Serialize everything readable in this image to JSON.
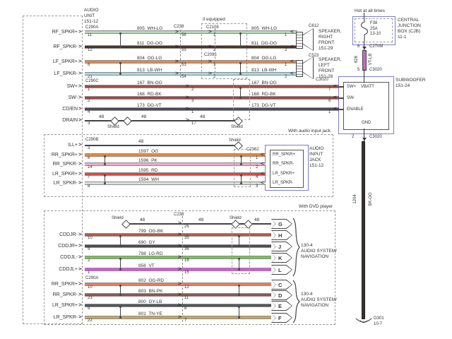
{
  "shield_label": "Shield",
  "audio_unit": {
    "title": "AUDIO\nUNIT\n151-12"
  },
  "front": {
    "left_connector": "C290A",
    "mid_connector": "C238",
    "if_equipped": "if equipped",
    "rows": [
      {
        "signal": "RF_SPKR+",
        "pin": "11",
        "mid_pin": "56",
        "ifeq": "C2108",
        "ifeq_pin": "1",
        "circuit": "805",
        "code": "WH-LG",
        "hex": "#b5d9b5",
        "dest": "C612",
        "dest_pin": "1"
      },
      {
        "signal": "RF_SPKR-",
        "pin": "12",
        "mid_pin": "55",
        "ifeq": "",
        "ifeq_pin": "2",
        "circuit": "811",
        "code": "DG-OG",
        "hex": "#4a332a",
        "dest": "",
        "dest_pin": "2"
      },
      {
        "signal": "LF_SPKR+",
        "pin": "8",
        "mid_pin": "53",
        "ifeq": "C2095",
        "ifeq_pin": "1",
        "circuit": "804",
        "code": "OG-LG",
        "hex": "#dc8a52",
        "dest": "C523",
        "dest_pin": "1"
      },
      {
        "signal": "LF_SPKR-",
        "pin": "21",
        "mid_pin": "54",
        "ifeq": "",
        "ifeq_pin": "2",
        "circuit": "813",
        "code": "LB-WH",
        "hex": "#a6d9e4",
        "dest": "",
        "dest_pin": "2"
      }
    ],
    "speakers": [
      "SPEAKER,\nRIGHT\nFRONT\n151-29",
      "SPEAKER,\nLEFT\nFRONT\n151-28"
    ]
  },
  "sw": {
    "left_connector": "C290C",
    "dest_connector": "C3020",
    "rows": [
      {
        "signal": "SW+",
        "pin": "1",
        "mid_pin": "2",
        "circuit": "167",
        "code": "BN-OG",
        "hex": "#9e4f45",
        "dest_pin": "7"
      },
      {
        "signal": "SW-",
        "pin": "2",
        "mid_pin": "3",
        "circuit": "168",
        "code": "RD-BK",
        "hex": "#a34545",
        "dest_pin": "8"
      },
      {
        "signal": "CD/EN",
        "pin": "4",
        "mid_pin": "1",
        "circuit": "173",
        "code": "DG-VT",
        "hex": "#4b4b52",
        "dest_pin": "1"
      },
      {
        "signal": "DRAIN",
        "pin": "3",
        "mid_pin": "17",
        "circuit": "48",
        "code": "",
        "hex": "#444444"
      }
    ]
  },
  "aux": {
    "header": "With audio input jack",
    "left_connector": "C290B",
    "right_connector": "C2362",
    "jack_title": "AUDIO\nINPUT\nJACK\n151-12",
    "rows": [
      {
        "signal": "ILL+",
        "pin": "3",
        "circuit": "48",
        "code": "",
        "hex": "#444444"
      },
      {
        "signal": "RR_SPKR+",
        "pin": "6",
        "circuit": "1597",
        "code": "OG",
        "hex": "#ee8430",
        "dest_pin": "1",
        "jack_pin": "RR_SPKR+"
      },
      {
        "signal": "RR_SPKR-",
        "pin": "14",
        "circuit": "1596",
        "code": "PK",
        "hex": "#f2abc6",
        "dest_pin": "2",
        "jack_pin": "RR_SPKR-"
      },
      {
        "signal": "LR_SPKR+",
        "pin": "7",
        "circuit": "1595",
        "code": "RD",
        "hex": "#e4443e",
        "dest_pin": "4",
        "jack_pin": "LR_SPKR+"
      },
      {
        "signal": "LR_SPKR-",
        "pin": "8",
        "circuit": "1594",
        "code": "WH",
        "hex": "#dcdcdc",
        "dest_pin": "3",
        "jack_pin": "LR_SPKR-"
      }
    ]
  },
  "dvd": {
    "header": "With DVD player",
    "mid_connector": "C238",
    "dest_label": "130-4\nAUDIO SYSTEM/\nNAVIGATION",
    "rows": [
      {
        "signal": "",
        "pin": "",
        "mid_pin": "26",
        "circuit": "48",
        "code": "",
        "hex": "#444444",
        "terminal": "G"
      },
      {
        "signal": "CDDJR-",
        "pin": "10",
        "mid_pin": "35",
        "circuit": "799",
        "code": "OG-BK",
        "hex": "#b15a49",
        "terminal": "H"
      },
      {
        "signal": "CDDJR+",
        "pin": "9",
        "mid_pin": "36",
        "circuit": "690",
        "code": "GY",
        "hex": "#4b4b50",
        "terminal": "J"
      },
      {
        "signal": "CDDJL-",
        "pin": "2",
        "mid_pin": "16",
        "circuit": "798",
        "code": "LG-RD",
        "hex": "#76c353",
        "terminal": "K"
      },
      {
        "signal": "CDDJL+",
        "pin": "1",
        "mid_pin": "15",
        "circuit": "856",
        "code": "VT",
        "hex": "#e44fe4",
        "terminal": "L"
      }
    ]
  },
  "nav": {
    "left_connector": "C290A",
    "dest_label": "130-4\nAUDIO SYSTEM/\nNAVIGATION",
    "rows": [
      {
        "signal": "RR_SPKR+",
        "pin": "10",
        "mid_pin": "12",
        "circuit": "802",
        "code": "OG-RD",
        "hex": "#f07a5a",
        "terminal": "C"
      },
      {
        "signal": "RR_SPKR-",
        "pin": "23",
        "mid_pin": "11",
        "circuit": "803",
        "code": "BN-PK",
        "hex": "#8e564e",
        "terminal": "D"
      },
      {
        "signal": "LR_SPKR+",
        "pin": "9",
        "mid_pin": "8",
        "circuit": "800",
        "code": "GY-LB",
        "hex": "#4e575e",
        "terminal": "E"
      },
      {
        "signal": "LR_SPKR-",
        "pin": "22",
        "mid_pin": "7",
        "circuit": "801",
        "code": "TN-YE",
        "hex": "#c9a55c",
        "terminal": "F"
      }
    ]
  },
  "power": {
    "hot": "Hot at all times",
    "cjb": "CENTRAL\nJUNCTION\nBOX (CJB)\n11-1",
    "fuse": "F38\n25A\n13-10",
    "pin_top": "6",
    "conn_top": "C270M",
    "circuit": "828",
    "code": "VT-LB",
    "hex": "#cf63d4",
    "pin_bottom": "5",
    "conn_bottom": "C3020"
  },
  "subwoofer": {
    "title": "SUBWOOFER\n151-24",
    "conn": "C3020",
    "inputs": [
      "SW+",
      "SW-",
      "ENABLE"
    ],
    "vbatt": "VBATT",
    "gnd": "GND",
    "gnd_pin": "2",
    "gnd_conn": "C3020",
    "gnd_circuit": "1204",
    "gnd_code": "BK-OG",
    "gnd_hex": "#3c302b",
    "ground_ref": "G301\n10-7"
  }
}
